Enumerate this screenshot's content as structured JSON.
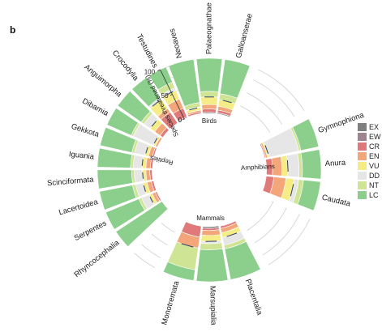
{
  "panel_label": "b",
  "chart_data": {
    "type": "circular-stacked-bar",
    "radial_axis": {
      "label": "Species threatened (%)",
      "ticks": [
        "0",
        "50",
        "100"
      ],
      "range": [
        0,
        100
      ]
    },
    "categories_legend": [
      {
        "code": "EX",
        "color": "#7f7f7f"
      },
      {
        "code": "EW",
        "color": "#9e8390"
      },
      {
        "code": "CR",
        "color": "#e07a7a"
      },
      {
        "code": "EN",
        "color": "#f2a67a"
      },
      {
        "code": "VU",
        "color": "#f5ec86"
      },
      {
        "code": "DD",
        "color": "#e6e6e6"
      },
      {
        "code": "NT",
        "color": "#cfe495"
      },
      {
        "code": "LC",
        "color": "#8ccf8c"
      }
    ],
    "groups": [
      {
        "name": "Birds",
        "orders": [
          {
            "name": "Neoaves",
            "values": {
              "EX": 1,
              "EW": 0,
              "CR": 3,
              "EN": 3,
              "VU": 5,
              "DD": 1,
              "NT": 8,
              "LC": 79
            }
          },
          {
            "name": "Palaeognathae",
            "values": {
              "EX": 2,
              "EW": 0,
              "CR": 6,
              "EN": 8,
              "VU": 14,
              "DD": 0,
              "NT": 10,
              "LC": 60
            }
          },
          {
            "name": "Galloanserae",
            "values": {
              "EX": 2,
              "EW": 0,
              "CR": 5,
              "EN": 7,
              "VU": 12,
              "DD": 0,
              "NT": 11,
              "LC": 63
            }
          }
        ]
      },
      {
        "name": "Amphibians",
        "orders": [
          {
            "name": "Gymnophiona",
            "values": {
              "EX": 0,
              "EW": 0,
              "CR": 2,
              "EN": 3,
              "VU": 3,
              "DD": 55,
              "NT": 4,
              "LC": 33
            }
          },
          {
            "name": "Anura",
            "values": {
              "EX": 1,
              "EW": 0,
              "CR": 11,
              "EN": 17,
              "VU": 11,
              "DD": 20,
              "NT": 6,
              "LC": 34
            }
          },
          {
            "name": "Caudata",
            "values": {
              "EX": 1,
              "EW": 0,
              "CR": 14,
              "EN": 22,
              "VU": 15,
              "DD": 8,
              "NT": 9,
              "LC": 31
            }
          }
        ]
      },
      {
        "name": "Mammals",
        "orders": [
          {
            "name": "Placentalia",
            "values": {
              "EX": 1,
              "EW": 0,
              "CR": 4,
              "EN": 8,
              "VU": 9,
              "DD": 14,
              "NT": 7,
              "LC": 57
            }
          },
          {
            "name": "Marsupialia",
            "values": {
              "EX": 3,
              "EW": 0,
              "CR": 4,
              "EN": 9,
              "VU": 11,
              "DD": 4,
              "NT": 11,
              "LC": 58
            }
          },
          {
            "name": "Monotremata",
            "values": {
              "EX": 0,
              "EW": 0,
              "CR": 20,
              "EN": 20,
              "VU": 0,
              "DD": 0,
              "NT": 40,
              "LC": 20
            }
          }
        ]
      },
      {
        "name": "Reptiles",
        "orders": [
          {
            "name": "Rhyncocephalia",
            "values": {
              "EX": 0,
              "EW": 0,
              "CR": 0,
              "EN": 0,
              "VU": 0,
              "DD": 0,
              "NT": 0,
              "LC": 100
            }
          },
          {
            "name": "Serpentes",
            "values": {
              "EX": 0,
              "EW": 0,
              "CR": 3,
              "EN": 6,
              "VU": 6,
              "DD": 15,
              "NT": 5,
              "LC": 65
            }
          },
          {
            "name": "Lacertoidea",
            "values": {
              "EX": 0,
              "EW": 0,
              "CR": 4,
              "EN": 8,
              "VU": 7,
              "DD": 14,
              "NT": 6,
              "LC": 61
            }
          },
          {
            "name": "Scinciformata",
            "values": {
              "EX": 1,
              "EW": 0,
              "CR": 4,
              "EN": 7,
              "VU": 6,
              "DD": 15,
              "NT": 5,
              "LC": 62
            }
          },
          {
            "name": "Iguania",
            "values": {
              "EX": 0,
              "EW": 0,
              "CR": 4,
              "EN": 8,
              "VU": 7,
              "DD": 16,
              "NT": 5,
              "LC": 60
            }
          },
          {
            "name": "Gekkota",
            "values": {
              "EX": 0,
              "EW": 0,
              "CR": 3,
              "EN": 7,
              "VU": 6,
              "DD": 20,
              "NT": 5,
              "LC": 59
            }
          },
          {
            "name": "Dibamia",
            "values": {
              "EX": 0,
              "EW": 0,
              "CR": 0,
              "EN": 4,
              "VU": 4,
              "DD": 40,
              "NT": 4,
              "LC": 48
            }
          },
          {
            "name": "Anguimorpha",
            "values": {
              "EX": 0,
              "EW": 0,
              "CR": 6,
              "EN": 12,
              "VU": 10,
              "DD": 14,
              "NT": 6,
              "LC": 52
            }
          },
          {
            "name": "Crocodylia",
            "values": {
              "EX": 0,
              "EW": 0,
              "CR": 24,
              "EN": 8,
              "VU": 20,
              "DD": 4,
              "NT": 0,
              "LC": 44
            }
          },
          {
            "name": "Testudines",
            "values": {
              "EX": 2,
              "EW": 0,
              "CR": 17,
              "EN": 18,
              "VU": 17,
              "DD": 5,
              "NT": 11,
              "LC": 30
            }
          }
        ]
      }
    ]
  }
}
